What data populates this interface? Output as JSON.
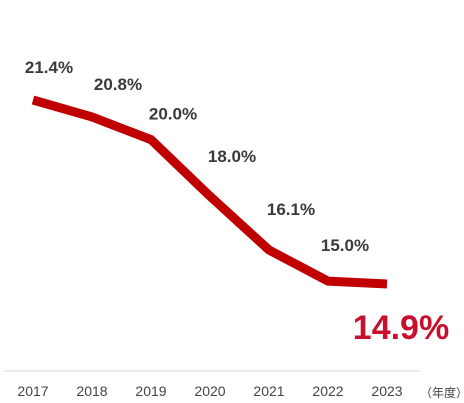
{
  "chart_data": {
    "type": "line",
    "x": [
      "2017",
      "2018",
      "2019",
      "2020",
      "2021",
      "2022",
      "2023"
    ],
    "series": [
      {
        "values": [
          21.4,
          20.8,
          20.0,
          18.0,
          16.1,
          15.0,
          14.9
        ],
        "labels": [
          "21.4%",
          "20.8%",
          "20.0%",
          "18.0%",
          "16.1%",
          "15.0%",
          "14.9%"
        ]
      }
    ],
    "x_unit_label": "（年度）",
    "grid": false,
    "colors": {
      "line": "#c00000",
      "highlight_label": "#c8102e",
      "text": "#3a3a3a",
      "axis": "#d9d9d9"
    }
  }
}
